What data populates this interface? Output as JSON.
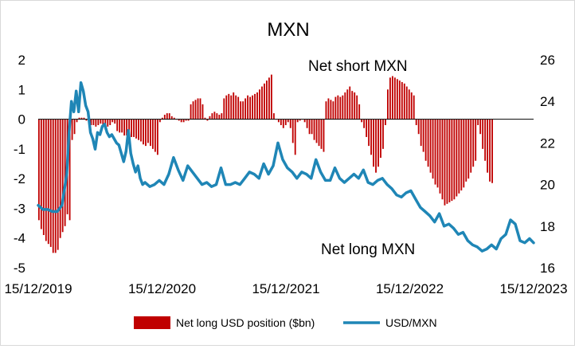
{
  "chart_data": {
    "type": "bar+line",
    "title": "MXN",
    "left_axis": {
      "range": [
        -5,
        2
      ],
      "ticks": [
        "2",
        "1",
        "0",
        "-1",
        "-2",
        "-3",
        "-4",
        "-5"
      ]
    },
    "right_axis": {
      "range": [
        16,
        26
      ],
      "ticks": [
        "26",
        "24",
        "22",
        "20",
        "18",
        "16"
      ]
    },
    "x_axis": {
      "range": [
        "2019-12-15",
        "2023-12-15"
      ],
      "tick_labels": [
        "15/12/2019",
        "15/12/2020",
        "15/12/2021",
        "15/12/2022",
        "15/12/2023"
      ]
    },
    "annotations": [
      "Net short MXN",
      "Net long MXN"
    ],
    "legend": {
      "position": "bottom"
    },
    "series": [
      {
        "name": "Net long USD position ($bn)",
        "type": "bar",
        "axis": "left",
        "color": "#c00000",
        "x_start": "2019-12-17",
        "x_step_days": 7,
        "values": [
          -3.4,
          -3.7,
          -3.9,
          -4.1,
          -4.2,
          -4.3,
          -4.5,
          -4.5,
          -4.4,
          -4.0,
          -3.8,
          -3.6,
          -3.2,
          -3.4,
          -0.7,
          -0.5,
          -0.1,
          0.05,
          0.05,
          0.05,
          -0.05,
          -0.15,
          -0.2,
          -0.2,
          -0.25,
          -0.2,
          -0.15,
          -0.2,
          -0.35,
          -0.25,
          -0.2,
          -0.1,
          -0.15,
          -0.4,
          -0.45,
          -0.45,
          -0.55,
          -0.55,
          -0.6,
          -0.6,
          -0.6,
          -0.65,
          -0.7,
          -0.75,
          -0.85,
          -0.9,
          -0.8,
          -0.9,
          -1.0,
          -1.1,
          -1.2,
          -0.1,
          0.05,
          0.15,
          0.2,
          0.2,
          0.1,
          0.05,
          0.0,
          -0.05,
          -0.1,
          -0.1,
          -0.05,
          -0.05,
          0.5,
          0.6,
          0.65,
          0.7,
          0.7,
          0.5,
          0.05,
          -0.05,
          0.1,
          0.2,
          0.25,
          0.2,
          0.15,
          0.2,
          0.7,
          0.8,
          0.85,
          0.8,
          0.9,
          0.8,
          0.75,
          0.6,
          0.6,
          0.7,
          0.8,
          0.75,
          0.8,
          0.85,
          0.9,
          1.0,
          1.1,
          1.2,
          1.3,
          1.4,
          1.5,
          0.2,
          0.0,
          -0.1,
          -0.2,
          -0.3,
          -0.2,
          -0.1,
          -0.3,
          -0.8,
          -1.2,
          -0.1,
          -0.05,
          0.0,
          -0.1,
          -0.3,
          -0.5,
          -0.5,
          -0.7,
          -0.8,
          -0.9,
          -1.0,
          -1.1,
          0.6,
          0.7,
          0.65,
          0.6,
          0.75,
          0.8,
          0.75,
          0.8,
          0.9,
          1.0,
          1.1,
          0.95,
          0.9,
          0.8,
          0.5,
          -0.1,
          -0.3,
          -0.6,
          -0.9,
          -1.2,
          -1.6,
          -1.8,
          -1.6,
          -1.3,
          -1.0,
          -0.2,
          1.0,
          1.4,
          1.45,
          1.4,
          1.35,
          1.3,
          1.25,
          1.2,
          1.1,
          1.0,
          0.9,
          0.8,
          -0.2,
          -0.5,
          -0.9,
          -1.1,
          -1.4,
          -1.6,
          -1.8,
          -2.0,
          -2.2,
          -2.3,
          -2.5,
          -2.7,
          -2.9,
          -2.85,
          -2.8,
          -2.75,
          -2.7,
          -2.6,
          -2.5,
          -2.4,
          -2.3,
          -2.1,
          -2.0,
          -1.8,
          -1.6,
          -1.4,
          -0.2,
          -0.5,
          -1.0,
          -1.4,
          -1.8,
          -2.1,
          -2.15
        ]
      },
      {
        "name": "USD/MXN",
        "type": "line",
        "axis": "right",
        "color": "#1f86b6",
        "points": [
          [
            "2019-12-15",
            19.0
          ],
          [
            "2019-12-29",
            18.8
          ],
          [
            "2020-01-12",
            18.8
          ],
          [
            "2020-01-26",
            18.7
          ],
          [
            "2020-02-09",
            18.7
          ],
          [
            "2020-02-23",
            19.0
          ],
          [
            "2020-03-08",
            20.5
          ],
          [
            "2020-03-15",
            22.5
          ],
          [
            "2020-03-22",
            24.0
          ],
          [
            "2020-03-29",
            23.5
          ],
          [
            "2020-04-05",
            24.5
          ],
          [
            "2020-04-12",
            23.5
          ],
          [
            "2020-04-19",
            24.9
          ],
          [
            "2020-04-26",
            24.5
          ],
          [
            "2020-05-03",
            23.8
          ],
          [
            "2020-05-10",
            23.5
          ],
          [
            "2020-05-17",
            22.5
          ],
          [
            "2020-05-24",
            22.2
          ],
          [
            "2020-05-31",
            21.7
          ],
          [
            "2020-06-07",
            22.5
          ],
          [
            "2020-06-14",
            22.4
          ],
          [
            "2020-06-21",
            22.8
          ],
          [
            "2020-06-28",
            22.9
          ],
          [
            "2020-07-05",
            22.5
          ],
          [
            "2020-07-12",
            22.3
          ],
          [
            "2020-07-19",
            22.4
          ],
          [
            "2020-07-26",
            22.2
          ],
          [
            "2020-08-02",
            22.0
          ],
          [
            "2020-08-09",
            21.9
          ],
          [
            "2020-08-16",
            21.5
          ],
          [
            "2020-08-23",
            21.1
          ],
          [
            "2020-08-30",
            21.6
          ],
          [
            "2020-09-06",
            22.6
          ],
          [
            "2020-09-13",
            21.5
          ],
          [
            "2020-09-20",
            21.0
          ],
          [
            "2020-09-27",
            20.6
          ],
          [
            "2020-10-04",
            20.9
          ],
          [
            "2020-10-11",
            20.3
          ],
          [
            "2020-10-18",
            20.0
          ],
          [
            "2020-10-25",
            20.1
          ],
          [
            "2020-11-08",
            19.9
          ],
          [
            "2020-11-22",
            20.0
          ],
          [
            "2020-12-06",
            20.2
          ],
          [
            "2020-12-20",
            20.0
          ],
          [
            "2021-01-03",
            20.5
          ],
          [
            "2021-01-17",
            21.3
          ],
          [
            "2021-01-31",
            20.7
          ],
          [
            "2021-02-14",
            20.2
          ],
          [
            "2021-02-28",
            20.9
          ],
          [
            "2021-03-14",
            20.6
          ],
          [
            "2021-03-28",
            20.3
          ],
          [
            "2021-04-11",
            20.0
          ],
          [
            "2021-04-25",
            20.1
          ],
          [
            "2021-05-09",
            19.9
          ],
          [
            "2021-05-23",
            20.0
          ],
          [
            "2021-06-06",
            20.8
          ],
          [
            "2021-06-20",
            20.0
          ],
          [
            "2021-07-04",
            20.0
          ],
          [
            "2021-07-18",
            20.1
          ],
          [
            "2021-08-01",
            20.0
          ],
          [
            "2021-08-15",
            20.3
          ],
          [
            "2021-08-29",
            20.6
          ],
          [
            "2021-09-12",
            20.5
          ],
          [
            "2021-09-26",
            20.3
          ],
          [
            "2021-10-10",
            21.0
          ],
          [
            "2021-10-24",
            20.5
          ],
          [
            "2021-11-07",
            20.9
          ],
          [
            "2021-11-21",
            22.0
          ],
          [
            "2021-12-05",
            21.2
          ],
          [
            "2021-12-19",
            20.8
          ],
          [
            "2022-01-02",
            20.6
          ],
          [
            "2022-01-16",
            20.3
          ],
          [
            "2022-01-30",
            20.6
          ],
          [
            "2022-02-13",
            20.5
          ],
          [
            "2022-02-27",
            20.3
          ],
          [
            "2022-03-13",
            21.2
          ],
          [
            "2022-03-27",
            20.6
          ],
          [
            "2022-04-10",
            20.2
          ],
          [
            "2022-04-24",
            20.2
          ],
          [
            "2022-05-08",
            20.8
          ],
          [
            "2022-05-22",
            20.3
          ],
          [
            "2022-06-05",
            20.1
          ],
          [
            "2022-06-19",
            20.3
          ],
          [
            "2022-07-03",
            20.5
          ],
          [
            "2022-07-17",
            20.3
          ],
          [
            "2022-07-31",
            20.7
          ],
          [
            "2022-08-14",
            20.1
          ],
          [
            "2022-08-28",
            20.0
          ],
          [
            "2022-09-11",
            20.2
          ],
          [
            "2022-09-25",
            20.3
          ],
          [
            "2022-10-09",
            20.0
          ],
          [
            "2022-10-23",
            19.8
          ],
          [
            "2022-11-06",
            19.5
          ],
          [
            "2022-11-20",
            19.4
          ],
          [
            "2022-12-04",
            19.6
          ],
          [
            "2022-12-18",
            19.7
          ],
          [
            "2023-01-01",
            19.3
          ],
          [
            "2023-01-15",
            18.9
          ],
          [
            "2023-01-29",
            18.7
          ],
          [
            "2023-02-12",
            18.5
          ],
          [
            "2023-02-26",
            18.2
          ],
          [
            "2023-03-12",
            18.6
          ],
          [
            "2023-03-26",
            18.0
          ],
          [
            "2023-04-09",
            18.1
          ],
          [
            "2023-04-23",
            17.9
          ],
          [
            "2023-05-07",
            17.6
          ],
          [
            "2023-05-21",
            17.7
          ],
          [
            "2023-06-04",
            17.3
          ],
          [
            "2023-06-18",
            17.1
          ],
          [
            "2023-07-02",
            17.0
          ],
          [
            "2023-07-16",
            16.8
          ],
          [
            "2023-07-30",
            16.9
          ],
          [
            "2023-08-13",
            17.1
          ],
          [
            "2023-08-27",
            16.9
          ],
          [
            "2023-09-10",
            17.4
          ],
          [
            "2023-09-24",
            17.6
          ],
          [
            "2023-10-08",
            18.3
          ],
          [
            "2023-10-22",
            18.1
          ],
          [
            "2023-11-05",
            17.3
          ],
          [
            "2023-11-19",
            17.2
          ],
          [
            "2023-12-03",
            17.4
          ],
          [
            "2023-12-15",
            17.2
          ]
        ]
      }
    ]
  }
}
